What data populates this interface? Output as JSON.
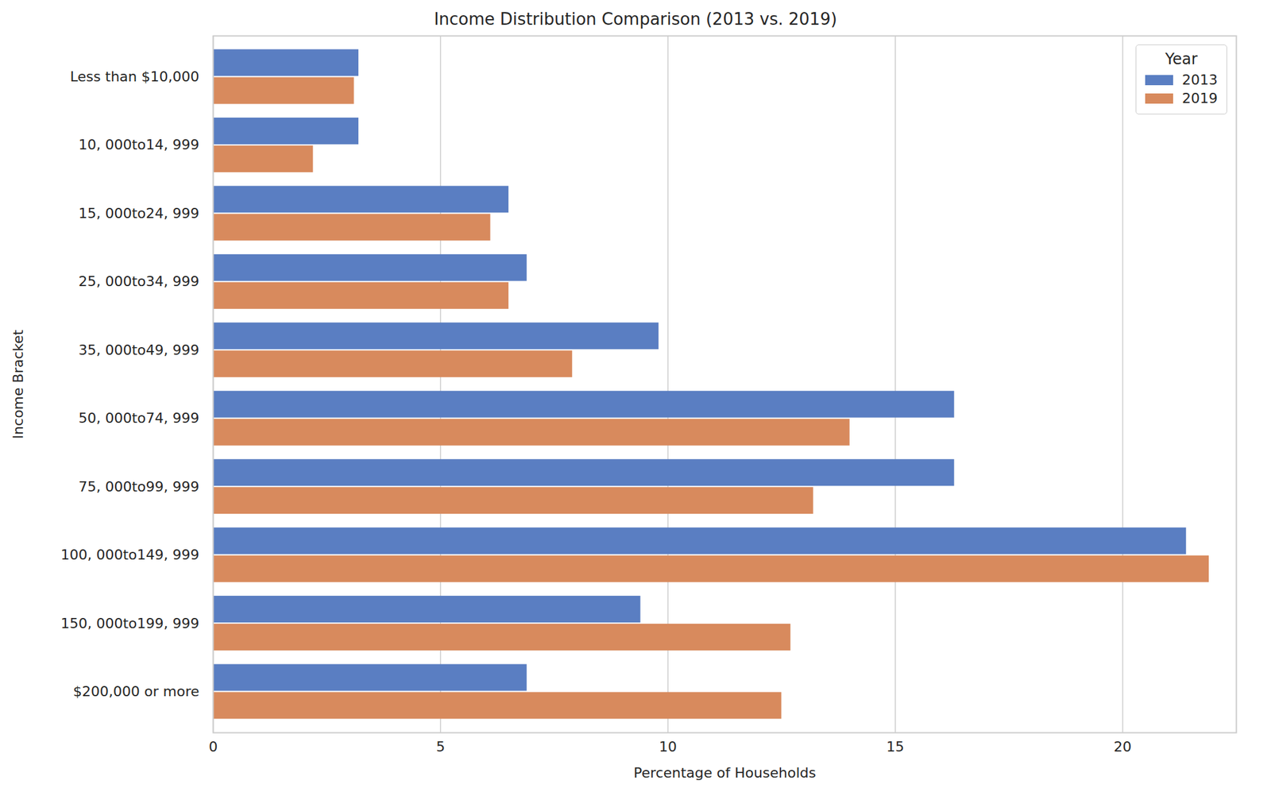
{
  "chart_data": {
    "type": "bar",
    "orientation": "horizontal",
    "title": "Income Distribution Comparison (2013 vs. 2019)",
    "xlabel": "Percentage of Households",
    "ylabel": "Income Bracket",
    "categories": [
      "Less than $10,000",
      "10, 000to14, 999",
      "15, 000to24, 999",
      "25, 000to34, 999",
      "35, 000to49, 999",
      "50, 000to74, 999",
      "75, 000to99, 999",
      "100, 000to149, 999",
      "150, 000to199, 999",
      "$200,000 or more"
    ],
    "series": [
      {
        "name": "2013",
        "color": "#5a7ec2",
        "values": [
          3.2,
          3.2,
          6.5,
          6.9,
          9.8,
          16.3,
          16.3,
          21.4,
          9.4,
          6.9
        ]
      },
      {
        "name": "2019",
        "color": "#d88a5d",
        "values": [
          3.1,
          2.2,
          6.1,
          6.5,
          7.9,
          14.0,
          13.2,
          21.9,
          12.7,
          12.5
        ]
      }
    ],
    "xlim": [
      0,
      22.5
    ],
    "xticks": [
      0,
      5,
      10,
      15,
      20
    ],
    "grid": true,
    "legend": "upper right",
    "legend_title": "Year"
  }
}
